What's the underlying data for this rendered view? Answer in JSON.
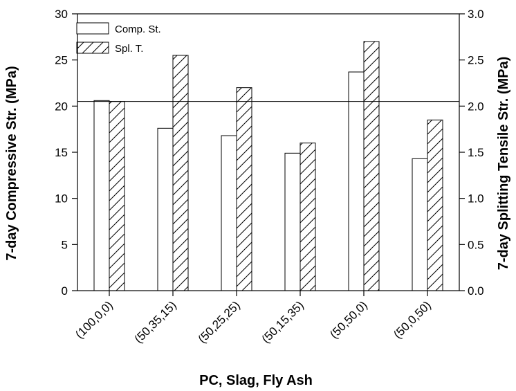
{
  "chart_data": {
    "type": "bar",
    "title": "",
    "xlabel": "PC, Slag, Fly Ash",
    "ylabel": "7-day Compressive Str. (MPa)",
    "ylabel_right": "7-day Splitting Tensile Str. (MPa)",
    "categories": [
      "(100,0,0)",
      "(50,35,15)",
      "(50,25,25)",
      "(50,15,35)",
      "(50,50,0)",
      "(50,0,50)"
    ],
    "series": [
      {
        "name": "Comp. St.",
        "axis": "left",
        "pattern": "none",
        "values": [
          20.6,
          17.6,
          16.8,
          14.9,
          23.7,
          14.3
        ]
      },
      {
        "name": "Spl. T.",
        "axis": "right",
        "pattern": "hatch",
        "values": [
          2.05,
          2.55,
          2.2,
          1.6,
          2.7,
          1.85
        ]
      }
    ],
    "ylim": [
      0,
      30
    ],
    "ylim_right": [
      0,
      3.0
    ],
    "yticks": [
      "0",
      "5",
      "10",
      "15",
      "20",
      "25",
      "30"
    ],
    "yticks_right": [
      "0.0",
      "0.5",
      "1.0",
      "1.5",
      "2.0",
      "2.5",
      "3.0"
    ],
    "reference_line": {
      "axis": "left",
      "value": 20.5
    },
    "legend_position": "top-left",
    "grid": false
  }
}
